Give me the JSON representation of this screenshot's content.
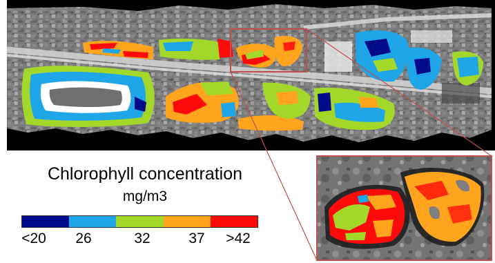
{
  "legend": {
    "title": "Chlorophyll concentration",
    "unit": "mg/m3",
    "scale": [
      {
        "label": "<20",
        "color": "#000b8c"
      },
      {
        "label": "26",
        "color": "#1ea6e8"
      },
      {
        "label": "32",
        "color": "#a3d82b"
      },
      {
        "label": "37",
        "color": "#ffa41c"
      },
      {
        "label": ">42",
        "color": "#ff0a0a"
      }
    ]
  },
  "imagery": {
    "kind": "aerial-grayscale",
    "water_classes": [
      "<20",
      "26",
      "32",
      "37",
      ">42"
    ],
    "inset": "enlarged-detail-of-outlined-pond"
  }
}
